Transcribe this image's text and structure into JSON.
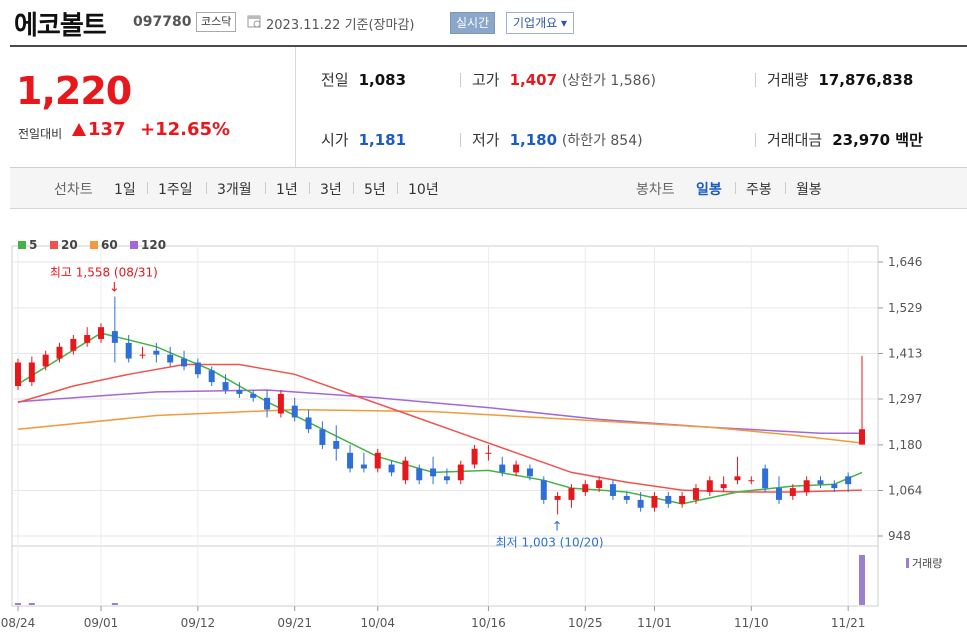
{
  "header": {
    "name": "에코볼트",
    "code": "097780",
    "market": "코스닥",
    "date": "2023.11.22  기준(장마감)",
    "realtime_button": "실시간",
    "company_button": "기업개요 ▾"
  },
  "summary": {
    "price": "1,220",
    "change_label": "전일대비",
    "change": "137",
    "change_pct": "+12.65%",
    "prev_close_label": "전일",
    "prev_close": "1,083",
    "high_label": "고가",
    "high": "1,407",
    "upper_limit": "(상한가 1,586)",
    "volume_label": "거래량",
    "volume": "17,876,838",
    "open_label": "시가",
    "open": "1,181",
    "low_label": "저가",
    "low": "1,180",
    "lower_limit": "(하한가 854)",
    "amount_label": "거래대금",
    "amount": "23,970 백만"
  },
  "tabs": {
    "line_label": "선차트",
    "line_periods": [
      "1일",
      "1주일",
      "3개월",
      "1년",
      "3년",
      "5년",
      "10년"
    ],
    "candle_label": "봉차트",
    "candle_periods": [
      "일봉",
      "주봉",
      "월봉"
    ],
    "candle_selected": "일봉"
  },
  "chart_data": {
    "type": "candlestick",
    "legend": [
      {
        "name": "5",
        "color": "#44b347"
      },
      {
        "name": "20",
        "color": "#ef5350"
      },
      {
        "name": "60",
        "color": "#f39a3c"
      },
      {
        "name": "120",
        "color": "#a368d6"
      }
    ],
    "y_ticks": [
      "1,646",
      "1,529",
      "1,413",
      "1,297",
      "1,180",
      "1,064",
      "948"
    ],
    "y_range": [
      948,
      1646
    ],
    "x_ticks": [
      "08/24",
      "09/01",
      "09/12",
      "09/21",
      "10/04",
      "10/16",
      "10/25",
      "11/01",
      "11/10",
      "11/21"
    ],
    "x_tick_index": [
      0,
      6,
      13,
      20,
      26,
      34,
      41,
      46,
      53,
      60
    ],
    "max_annotation": "최고 1,558 (08/31)",
    "min_annotation": "최저 1,003 (10/20)",
    "volume_label": "거래량",
    "candles": [
      [
        1330,
        1400,
        1320,
        1390
      ],
      [
        1340,
        1405,
        1330,
        1390
      ],
      [
        1380,
        1420,
        1370,
        1410
      ],
      [
        1400,
        1440,
        1390,
        1430
      ],
      [
        1420,
        1460,
        1410,
        1450
      ],
      [
        1440,
        1480,
        1430,
        1460
      ],
      [
        1450,
        1490,
        1440,
        1480
      ],
      [
        1470,
        1558,
        1390,
        1440
      ],
      [
        1440,
        1460,
        1390,
        1400
      ],
      [
        1410,
        1430,
        1400,
        1410
      ],
      [
        1420,
        1440,
        1390,
        1410
      ],
      [
        1410,
        1430,
        1380,
        1390
      ],
      [
        1400,
        1420,
        1370,
        1380
      ],
      [
        1390,
        1400,
        1350,
        1360
      ],
      [
        1370,
        1380,
        1330,
        1340
      ],
      [
        1340,
        1360,
        1310,
        1320
      ],
      [
        1320,
        1340,
        1300,
        1310
      ],
      [
        1310,
        1320,
        1290,
        1300
      ],
      [
        1300,
        1320,
        1250,
        1270
      ],
      [
        1260,
        1320,
        1250,
        1310
      ],
      [
        1280,
        1300,
        1240,
        1250
      ],
      [
        1250,
        1270,
        1210,
        1220
      ],
      [
        1220,
        1240,
        1170,
        1180
      ],
      [
        1190,
        1230,
        1140,
        1170
      ],
      [
        1160,
        1180,
        1110,
        1120
      ],
      [
        1130,
        1160,
        1110,
        1120
      ],
      [
        1120,
        1170,
        1110,
        1160
      ],
      [
        1130,
        1140,
        1100,
        1110
      ],
      [
        1090,
        1150,
        1080,
        1140
      ],
      [
        1120,
        1130,
        1080,
        1090
      ],
      [
        1120,
        1150,
        1080,
        1100
      ],
      [
        1100,
        1120,
        1080,
        1090
      ],
      [
        1090,
        1140,
        1080,
        1130
      ],
      [
        1130,
        1180,
        1120,
        1170
      ],
      [
        1160,
        1180,
        1140,
        1160
      ],
      [
        1130,
        1150,
        1100,
        1110
      ],
      [
        1110,
        1140,
        1100,
        1130
      ],
      [
        1120,
        1130,
        1090,
        1100
      ],
      [
        1090,
        1100,
        1030,
        1040
      ],
      [
        1040,
        1060,
        1003,
        1050
      ],
      [
        1040,
        1080,
        1020,
        1070
      ],
      [
        1060,
        1090,
        1050,
        1080
      ],
      [
        1070,
        1100,
        1060,
        1090
      ],
      [
        1080,
        1090,
        1040,
        1050
      ],
      [
        1050,
        1060,
        1030,
        1040
      ],
      [
        1040,
        1060,
        1010,
        1020
      ],
      [
        1020,
        1060,
        1010,
        1050
      ],
      [
        1050,
        1060,
        1020,
        1030
      ],
      [
        1030,
        1060,
        1020,
        1050
      ],
      [
        1040,
        1080,
        1030,
        1070
      ],
      [
        1060,
        1100,
        1050,
        1090
      ],
      [
        1070,
        1100,
        1060,
        1080
      ],
      [
        1090,
        1150,
        1080,
        1100
      ],
      [
        1090,
        1100,
        1080,
        1090
      ],
      [
        1120,
        1130,
        1060,
        1070
      ],
      [
        1070,
        1100,
        1030,
        1040
      ],
      [
        1050,
        1080,
        1040,
        1070
      ],
      [
        1060,
        1100,
        1050,
        1090
      ],
      [
        1090,
        1100,
        1070,
        1080
      ],
      [
        1080,
        1090,
        1060,
        1070
      ],
      [
        1100,
        1110,
        1060,
        1080
      ],
      [
        1181,
        1407,
        1180,
        1220
      ]
    ],
    "ma": {
      "5": [
        [
          0,
          1335
        ],
        [
          6,
          1465
        ],
        [
          10,
          1430
        ],
        [
          14,
          1370
        ],
        [
          18,
          1290
        ],
        [
          22,
          1220
        ],
        [
          26,
          1150
        ],
        [
          30,
          1110
        ],
        [
          34,
          1115
        ],
        [
          38,
          1090
        ],
        [
          40,
          1070
        ],
        [
          44,
          1060
        ],
        [
          48,
          1030
        ],
        [
          52,
          1060
        ],
        [
          56,
          1075
        ],
        [
          59,
          1080
        ],
        [
          61,
          1110
        ]
      ],
      "20": [
        [
          0,
          1288
        ],
        [
          4,
          1330
        ],
        [
          8,
          1360
        ],
        [
          12,
          1385
        ],
        [
          16,
          1385
        ],
        [
          20,
          1360
        ],
        [
          24,
          1310
        ],
        [
          28,
          1260
        ],
        [
          32,
          1210
        ],
        [
          36,
          1160
        ],
        [
          40,
          1110
        ],
        [
          44,
          1085
        ],
        [
          48,
          1065
        ],
        [
          52,
          1060
        ],
        [
          56,
          1060
        ],
        [
          61,
          1065
        ]
      ],
      "60": [
        [
          0,
          1220
        ],
        [
          10,
          1255
        ],
        [
          20,
          1270
        ],
        [
          30,
          1265
        ],
        [
          40,
          1245
        ],
        [
          50,
          1225
        ],
        [
          56,
          1205
        ],
        [
          61,
          1185
        ]
      ],
      "120": [
        [
          0,
          1290
        ],
        [
          10,
          1315
        ],
        [
          18,
          1320
        ],
        [
          26,
          1300
        ],
        [
          34,
          1275
        ],
        [
          42,
          1245
        ],
        [
          50,
          1225
        ],
        [
          58,
          1210
        ],
        [
          61,
          1210
        ]
      ]
    },
    "volume": [
      0.02,
      0.02,
      0,
      0,
      0,
      0,
      0,
      0.03,
      0,
      0,
      0,
      0,
      0,
      0,
      0,
      0,
      0,
      0,
      0,
      0,
      0,
      0,
      0,
      0,
      0,
      0,
      0,
      0,
      0,
      0,
      0,
      0,
      0,
      0,
      0,
      0,
      0,
      0,
      0,
      0,
      0,
      0,
      0,
      0,
      0,
      0,
      0,
      0,
      0,
      0,
      0,
      0,
      0,
      0,
      0,
      0,
      0,
      0,
      0,
      0,
      0,
      1
    ]
  }
}
